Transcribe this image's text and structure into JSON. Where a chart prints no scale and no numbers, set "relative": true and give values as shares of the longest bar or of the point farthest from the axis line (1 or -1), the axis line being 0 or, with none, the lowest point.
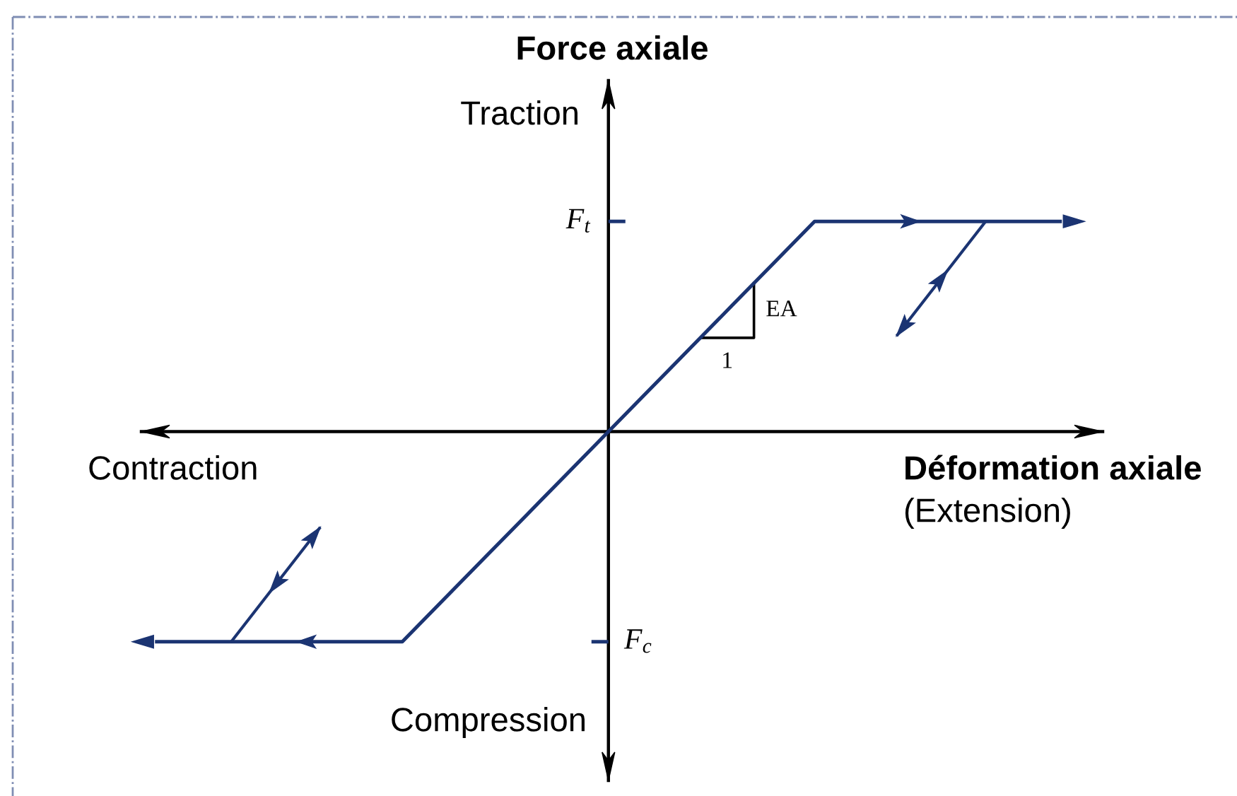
{
  "chart_data": {
    "type": "line",
    "relative": true,
    "xlabel": "Déformation axiale",
    "ylabel": "Force axiale",
    "annotations": [
      "Traction",
      "Compression",
      "Contraction",
      "(Extension)",
      "EA",
      "1",
      "F$_{t}$",
      "F$_{c}$"
    ],
    "categories": [
      null,
      null,
      null,
      null,
      null,
      null,
      null,
      null,
      null,
      null,
      null,
      null,
      null,
      null,
      null,
      null,
      null,
      null,
      null,
      null,
      null,
      null,
      null
    ],
    "series": [
      {
        "color": "#1b3472",
        "values": [
          -1,
          -1,
          -1,
          -1,
          -1,
          -1,
          -1,
          -0.8,
          -0.6,
          -0.4,
          -0.2,
          0,
          0.2,
          0.4,
          0.6,
          0.8,
          1,
          1,
          1,
          1,
          1,
          1,
          1
        ]
      }
    ],
    "grid": false,
    "marker": "none",
    "line_style": "solid"
  }
}
